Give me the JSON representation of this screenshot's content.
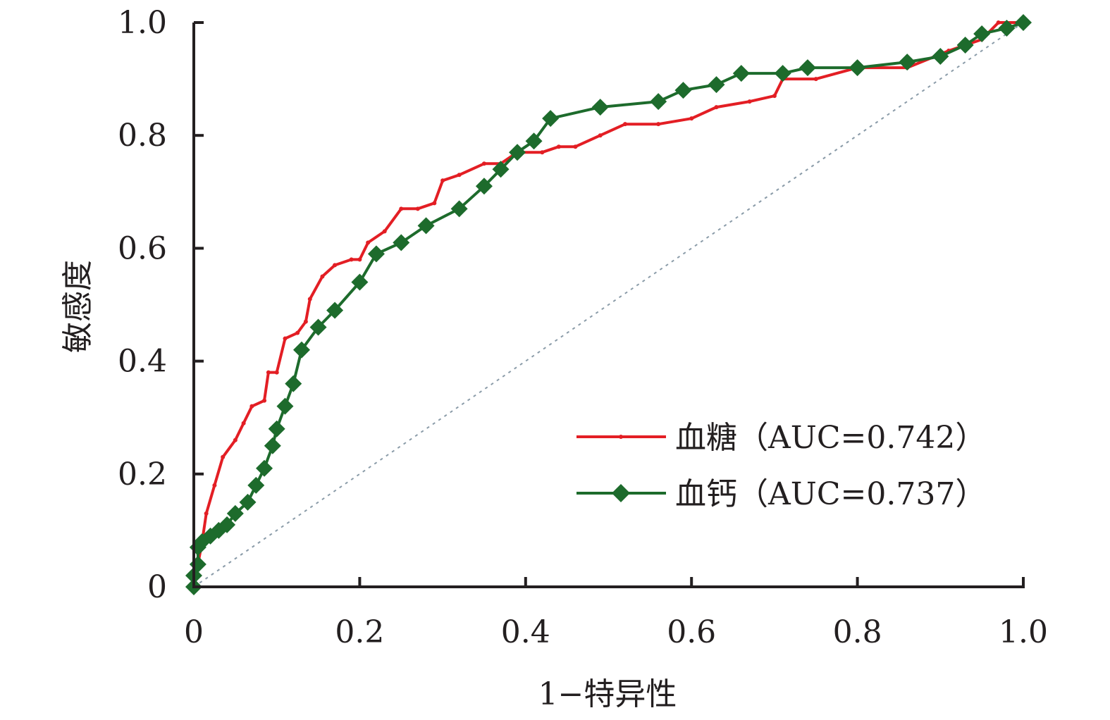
{
  "chart_data": {
    "type": "line",
    "xlabel": "1−特异性",
    "ylabel": "敏感度",
    "xlim": [
      0,
      1
    ],
    "ylim": [
      0,
      1
    ],
    "x_ticks": [
      "0",
      "0.2",
      "0.4",
      "0.6",
      "0.8",
      "1.0"
    ],
    "y_ticks": [
      "0",
      "0.2",
      "0.4",
      "0.6",
      "0.8",
      "1.0"
    ],
    "grid": false,
    "legend_position": "bottom-right",
    "reference_line": {
      "style": "dotted",
      "color": "#8a9ba8",
      "from": [
        0,
        0
      ],
      "to": [
        1,
        1
      ]
    },
    "series": [
      {
        "name": "血糖（AUC=0.742）",
        "color": "#e31e24",
        "marker": "dot",
        "points": [
          [
            0,
            0
          ],
          [
            0.005,
            0.04
          ],
          [
            0.01,
            0.08
          ],
          [
            0.015,
            0.13
          ],
          [
            0.025,
            0.18
          ],
          [
            0.035,
            0.23
          ],
          [
            0.05,
            0.26
          ],
          [
            0.06,
            0.29
          ],
          [
            0.07,
            0.32
          ],
          [
            0.085,
            0.33
          ],
          [
            0.09,
            0.38
          ],
          [
            0.1,
            0.38
          ],
          [
            0.11,
            0.44
          ],
          [
            0.125,
            0.45
          ],
          [
            0.135,
            0.47
          ],
          [
            0.14,
            0.51
          ],
          [
            0.155,
            0.55
          ],
          [
            0.17,
            0.57
          ],
          [
            0.19,
            0.58
          ],
          [
            0.2,
            0.58
          ],
          [
            0.21,
            0.61
          ],
          [
            0.23,
            0.63
          ],
          [
            0.25,
            0.67
          ],
          [
            0.27,
            0.67
          ],
          [
            0.29,
            0.68
          ],
          [
            0.3,
            0.72
          ],
          [
            0.32,
            0.73
          ],
          [
            0.35,
            0.75
          ],
          [
            0.37,
            0.75
          ],
          [
            0.39,
            0.77
          ],
          [
            0.42,
            0.77
          ],
          [
            0.44,
            0.78
          ],
          [
            0.46,
            0.78
          ],
          [
            0.49,
            0.8
          ],
          [
            0.52,
            0.82
          ],
          [
            0.56,
            0.82
          ],
          [
            0.6,
            0.83
          ],
          [
            0.63,
            0.85
          ],
          [
            0.67,
            0.86
          ],
          [
            0.7,
            0.87
          ],
          [
            0.71,
            0.9
          ],
          [
            0.75,
            0.9
          ],
          [
            0.8,
            0.92
          ],
          [
            0.86,
            0.92
          ],
          [
            0.91,
            0.95
          ],
          [
            0.95,
            0.97
          ],
          [
            0.97,
            1.0
          ],
          [
            1.0,
            1.0
          ]
        ]
      },
      {
        "name": "血钙（AUC=0.737）",
        "color": "#1d6b2c",
        "marker": "diamond",
        "points": [
          [
            0,
            0
          ],
          [
            0,
            0.02
          ],
          [
            0.005,
            0.04
          ],
          [
            0.005,
            0.07
          ],
          [
            0.01,
            0.08
          ],
          [
            0.02,
            0.09
          ],
          [
            0.03,
            0.1
          ],
          [
            0.04,
            0.11
          ],
          [
            0.05,
            0.13
          ],
          [
            0.065,
            0.15
          ],
          [
            0.075,
            0.18
          ],
          [
            0.085,
            0.21
          ],
          [
            0.095,
            0.25
          ],
          [
            0.1,
            0.28
          ],
          [
            0.11,
            0.32
          ],
          [
            0.12,
            0.36
          ],
          [
            0.13,
            0.42
          ],
          [
            0.15,
            0.46
          ],
          [
            0.17,
            0.49
          ],
          [
            0.2,
            0.54
          ],
          [
            0.22,
            0.59
          ],
          [
            0.25,
            0.61
          ],
          [
            0.28,
            0.64
          ],
          [
            0.32,
            0.67
          ],
          [
            0.35,
            0.71
          ],
          [
            0.37,
            0.74
          ],
          [
            0.39,
            0.77
          ],
          [
            0.41,
            0.79
          ],
          [
            0.43,
            0.83
          ],
          [
            0.49,
            0.85
          ],
          [
            0.56,
            0.86
          ],
          [
            0.59,
            0.88
          ],
          [
            0.63,
            0.89
          ],
          [
            0.66,
            0.91
          ],
          [
            0.71,
            0.91
          ],
          [
            0.74,
            0.92
          ],
          [
            0.8,
            0.92
          ],
          [
            0.86,
            0.93
          ],
          [
            0.9,
            0.94
          ],
          [
            0.93,
            0.96
          ],
          [
            0.95,
            0.98
          ],
          [
            0.98,
            0.99
          ],
          [
            1.0,
            1.0
          ]
        ]
      }
    ]
  }
}
